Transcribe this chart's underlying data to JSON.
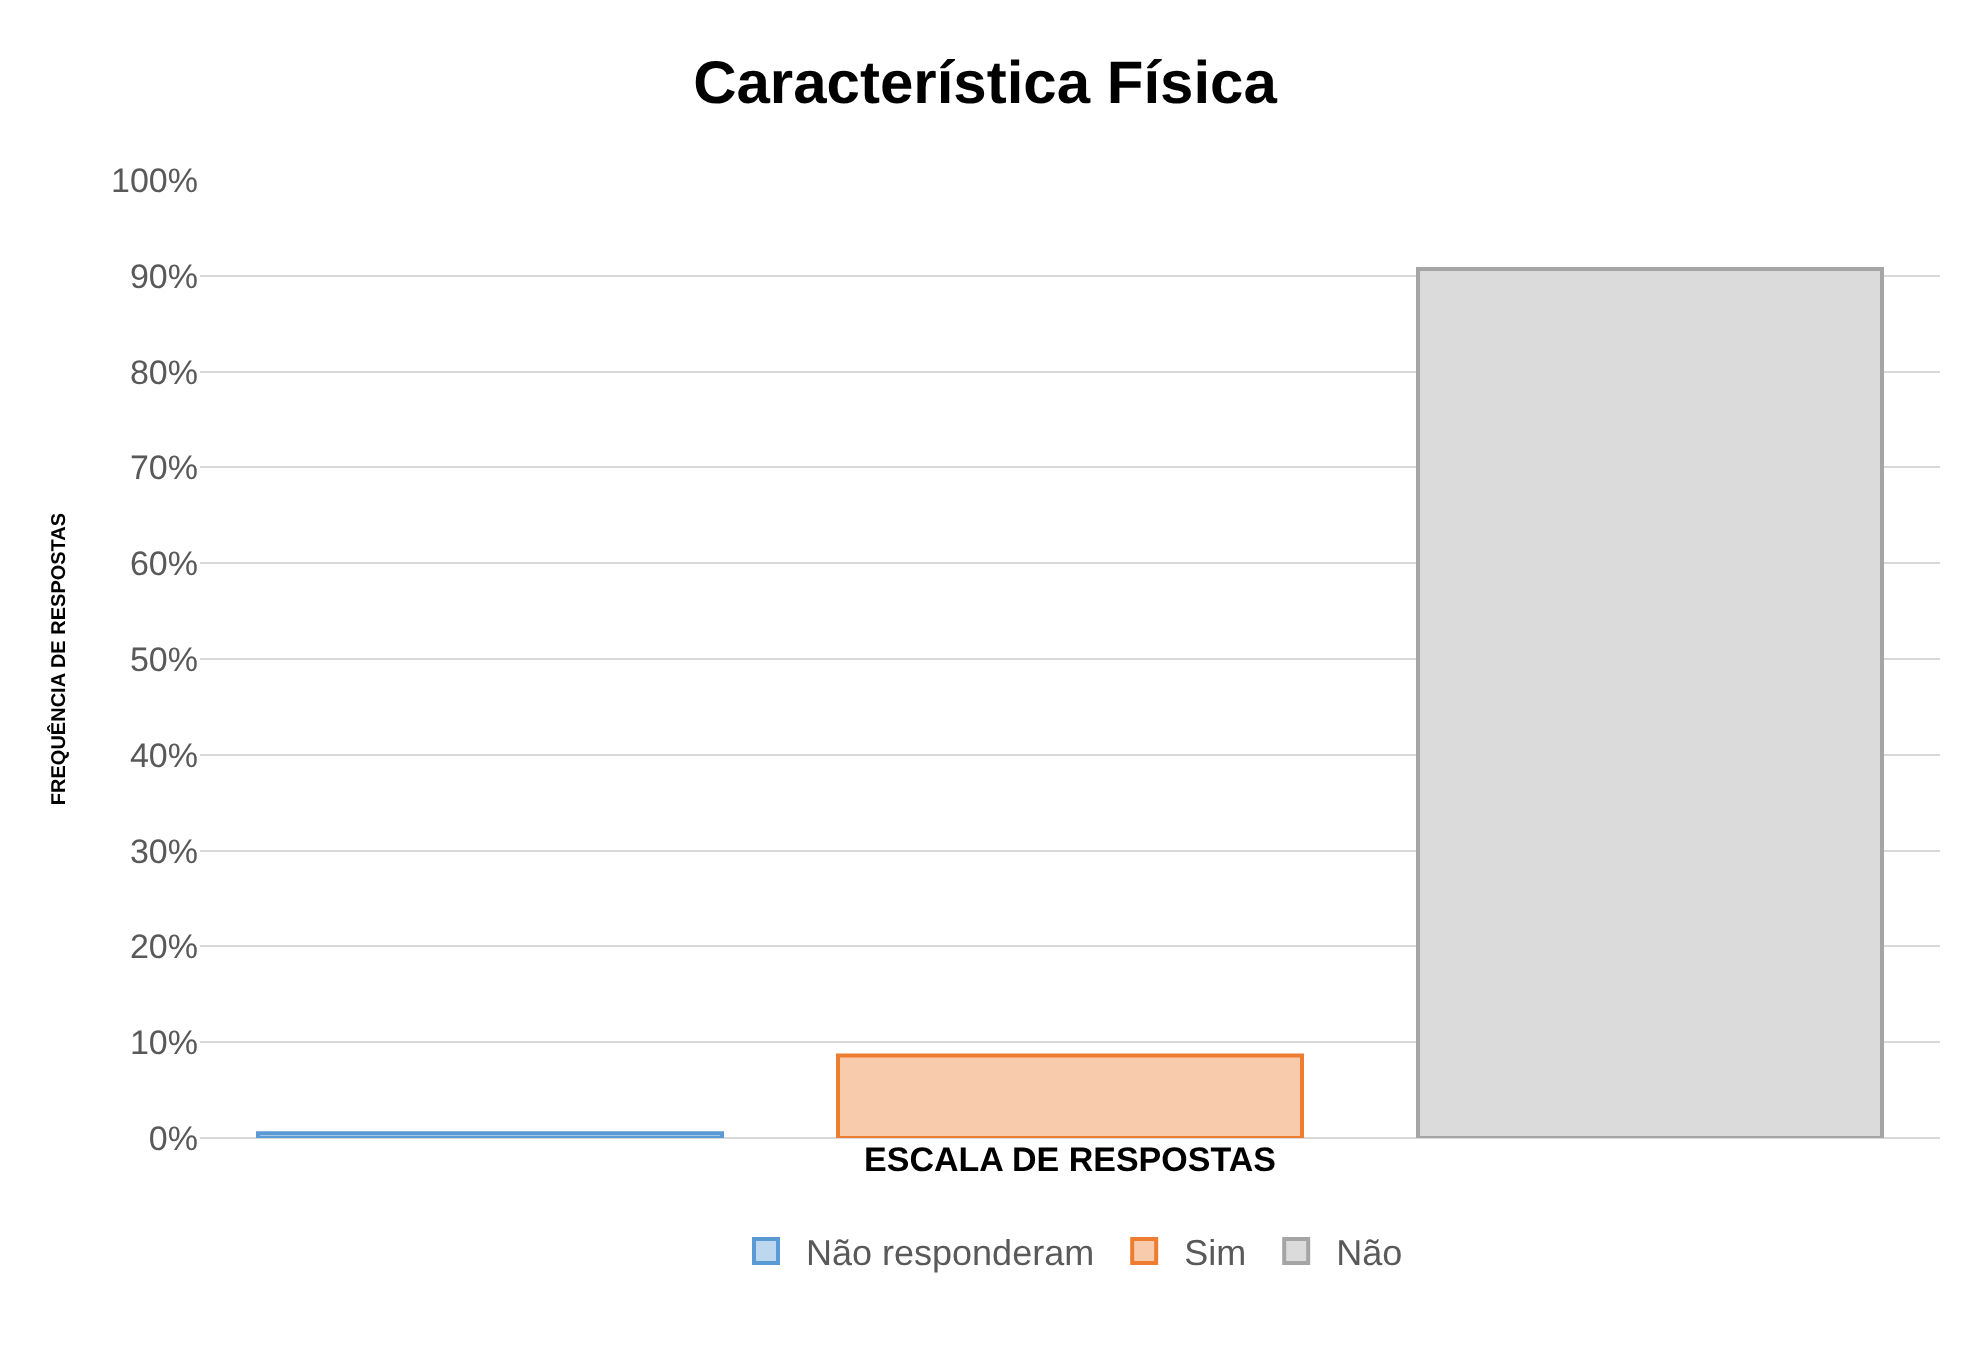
{
  "chart_data": {
    "type": "bar",
    "title": "Característica Física",
    "xlabel": "ESCALA DE RESPOSTAS",
    "ylabel": "FREQUÊNCIA DE RESPOSTAS",
    "categories": [
      null,
      null,
      null
    ],
    "series": [
      {
        "name": "Não responderam",
        "color": "#5b9bd5",
        "values": [
          0.5,
          null,
          null
        ]
      },
      {
        "name": "Sim",
        "color": "#ed7d31",
        "values": [
          null,
          8.6,
          null
        ]
      },
      {
        "name": "Não",
        "color": "#a5a5a5",
        "values": [
          null,
          null,
          90.7
        ]
      }
    ],
    "ylim": [
      0,
      100
    ],
    "yticks": [
      {
        "value": 0,
        "label": "0%"
      },
      {
        "value": 10,
        "label": "10%"
      },
      {
        "value": 20,
        "label": "20%"
      },
      {
        "value": 30,
        "label": "30%"
      },
      {
        "value": 40,
        "label": "40%"
      },
      {
        "value": 50,
        "label": "50%"
      },
      {
        "value": 60,
        "label": "60%"
      },
      {
        "value": 70,
        "label": "70%"
      },
      {
        "value": 80,
        "label": "80%"
      },
      {
        "value": 90,
        "label": "90%"
      },
      {
        "value": 100,
        "label": "100%"
      }
    ],
    "grid": "y",
    "legend": "bottom"
  }
}
